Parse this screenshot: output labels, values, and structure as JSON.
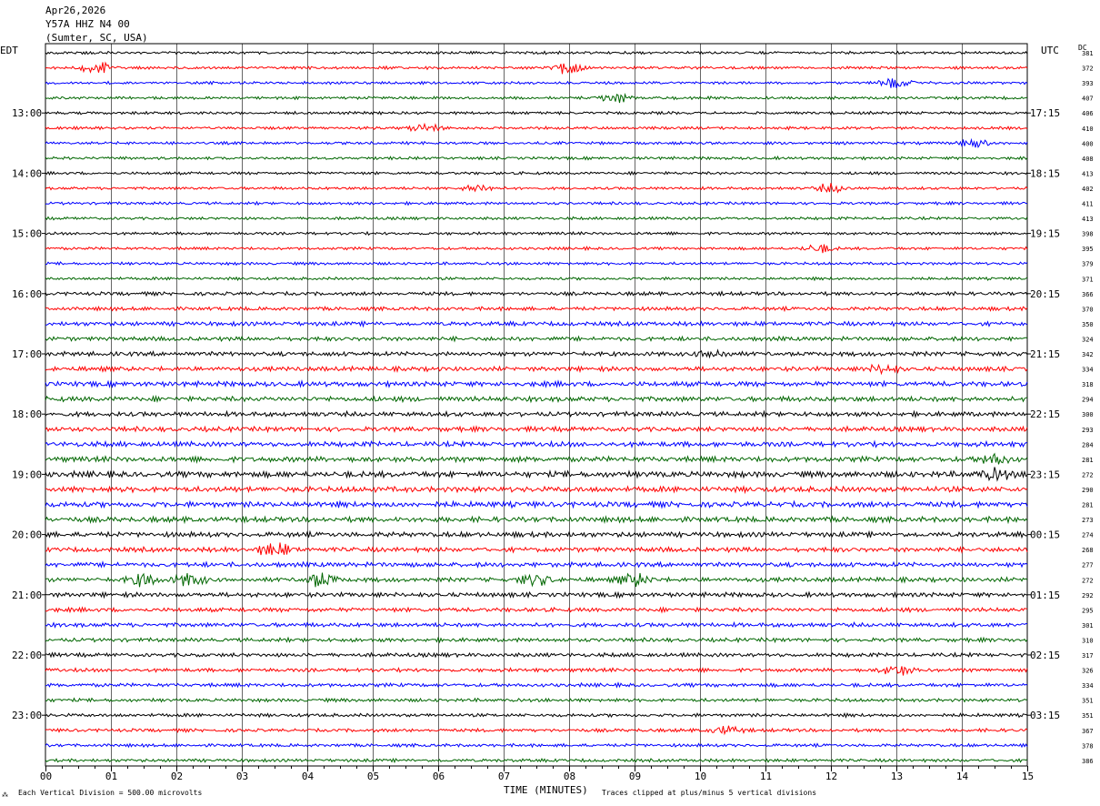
{
  "header": {
    "date": "Apr26,2026",
    "station": "Y57A HHZ N4 00",
    "location": "(Sumter, SC, USA)"
  },
  "left_zone": "EDT",
  "right_zone": "UTC",
  "dc_header": "DC",
  "footer": {
    "scale_note": "Each Vertical Division =  500.00 microvolts",
    "xlabel": "TIME (MINUTES)",
    "clip_note": "Traces clipped at plus/minus 5 vertical divisions",
    "corner_mark": "⁂"
  },
  "chart_data": {
    "type": "line",
    "title": "Y57A HHZ N4 00",
    "xlabel": "TIME (MINUTES)",
    "xlim": [
      0,
      15
    ],
    "x_ticks": [
      "00",
      "01",
      "02",
      "03",
      "04",
      "05",
      "06",
      "07",
      "08",
      "09",
      "10",
      "11",
      "12",
      "13",
      "14",
      "15"
    ],
    "left_time_labels": [
      "13:00",
      "14:00",
      "15:00",
      "16:00",
      "17:00",
      "18:00",
      "19:00",
      "20:00",
      "21:00",
      "22:00",
      "23:00"
    ],
    "right_time_labels": [
      "17:15",
      "18:15",
      "19:15",
      "20:15",
      "21:15",
      "22:15",
      "23:15",
      "00:15",
      "01:15",
      "02:15",
      "03:15"
    ],
    "hour_label_first_trace": 4,
    "traces_per_hour": 4,
    "trace_color_cycle": [
      "#000000",
      "#ff0000",
      "#0000ff",
      "#006600"
    ],
    "grid": true,
    "dc_offsets": [
      381,
      372,
      393,
      407,
      406,
      410,
      400,
      408,
      413,
      402,
      411,
      413,
      398,
      395,
      379,
      371,
      366,
      370,
      350,
      324,
      342,
      334,
      318,
      294,
      300,
      293,
      284,
      281,
      272,
      290,
      281,
      273,
      274,
      268,
      277,
      272,
      292,
      295,
      301,
      310,
      317,
      326,
      334,
      351,
      351,
      367,
      378,
      386
    ],
    "trace_amplitude_level": [
      1,
      1,
      1,
      1,
      1,
      1,
      1,
      1,
      1,
      1,
      1,
      1,
      1,
      1,
      1,
      1,
      1.3,
      1.3,
      1.5,
      1.5,
      1.6,
      1.6,
      1.8,
      1.8,
      1.7,
      1.7,
      1.8,
      1.9,
      2.1,
      2,
      2,
      1.9,
      1.8,
      1.7,
      1.7,
      1.6,
      1.6,
      1.5,
      1.5,
      1.4,
      1.4,
      1.3,
      1.3,
      1.2,
      1.2,
      1.2,
      1.1,
      1.1
    ],
    "events": [
      {
        "trace": 1,
        "minute": 0.8,
        "strength": 3
      },
      {
        "trace": 1,
        "minute": 8.0,
        "strength": 3
      },
      {
        "trace": 2,
        "minute": 13.0,
        "strength": 2.5
      },
      {
        "trace": 3,
        "minute": 8.7,
        "strength": 2.5
      },
      {
        "trace": 5,
        "minute": 5.8,
        "strength": 2
      },
      {
        "trace": 6,
        "minute": 14.2,
        "strength": 2
      },
      {
        "trace": 9,
        "minute": 6.6,
        "strength": 2
      },
      {
        "trace": 9,
        "minute": 12.0,
        "strength": 2
      },
      {
        "trace": 13,
        "minute": 11.8,
        "strength": 2
      },
      {
        "trace": 20,
        "minute": 10.2,
        "strength": 2
      },
      {
        "trace": 21,
        "minute": 12.8,
        "strength": 2
      },
      {
        "trace": 27,
        "minute": 14.5,
        "strength": 2.5
      },
      {
        "trace": 28,
        "minute": 14.5,
        "strength": 2.5
      },
      {
        "trace": 33,
        "minute": 3.5,
        "strength": 3
      },
      {
        "trace": 35,
        "minute": 1.5,
        "strength": 3
      },
      {
        "trace": 35,
        "minute": 2.2,
        "strength": 3
      },
      {
        "trace": 35,
        "minute": 4.2,
        "strength": 3.5
      },
      {
        "trace": 35,
        "minute": 7.5,
        "strength": 3
      },
      {
        "trace": 35,
        "minute": 9.0,
        "strength": 3
      },
      {
        "trace": 41,
        "minute": 13.0,
        "strength": 2.5
      },
      {
        "trace": 45,
        "minute": 10.4,
        "strength": 2
      }
    ]
  }
}
